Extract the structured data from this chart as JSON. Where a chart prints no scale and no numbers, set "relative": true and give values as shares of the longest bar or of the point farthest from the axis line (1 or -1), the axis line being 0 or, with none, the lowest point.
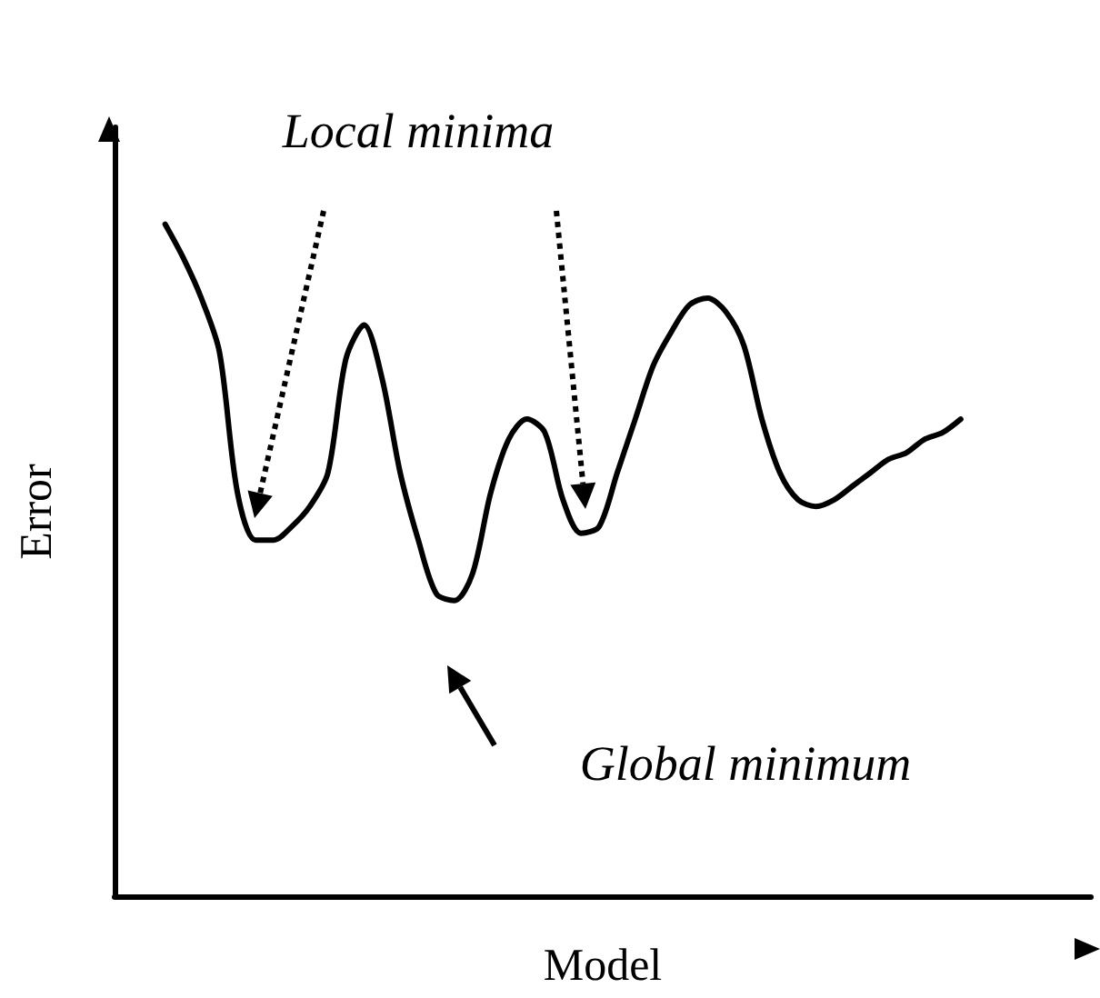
{
  "chart_data": {
    "type": "line",
    "xlabel": "Model",
    "ylabel": "Error",
    "relative": true,
    "categories": [
      null,
      null,
      null,
      null,
      null,
      null,
      null,
      null,
      null,
      null,
      null,
      null,
      null,
      null,
      null,
      null,
      null,
      null,
      null,
      null,
      null,
      null,
      null,
      null,
      null,
      null,
      null,
      null,
      null,
      null,
      null,
      null,
      null,
      null,
      null,
      null,
      null,
      null,
      null,
      null,
      null,
      null,
      null,
      null,
      null
    ],
    "series": [
      {
        "color": "#000000",
        "values": [
          1.0,
          0.95,
          0.89,
          0.81,
          0.6,
          0.53,
          0.53,
          0.55,
          0.58,
          0.63,
          0.8,
          0.85,
          0.77,
          0.63,
          0.53,
          0.45,
          0.44,
          0.48,
          0.6,
          0.68,
          0.71,
          0.69,
          0.59,
          0.54,
          0.55,
          0.63,
          0.71,
          0.79,
          0.84,
          0.88,
          0.89,
          0.87,
          0.82,
          0.71,
          0.63,
          0.59,
          0.58,
          0.59,
          0.61,
          0.63,
          0.65,
          0.66,
          0.68,
          0.69,
          0.71
        ]
      }
    ],
    "annotations": [
      "Local minima",
      "Global minimum"
    ]
  }
}
